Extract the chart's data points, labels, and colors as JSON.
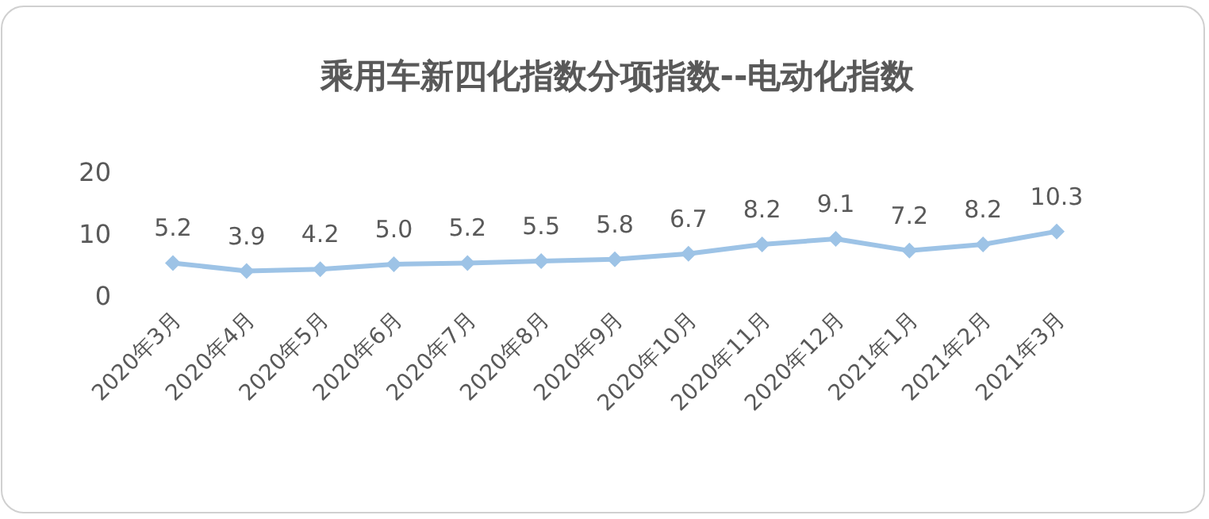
{
  "chart_data": {
    "type": "line",
    "title": "乘用车新四化指数分项指数--电动化指数",
    "categories": [
      "2020年3月",
      "2020年4月",
      "2020年5月",
      "2020年6月",
      "2020年7月",
      "2020年8月",
      "2020年9月",
      "2020年10月",
      "2020年11月",
      "2020年12月",
      "2021年1月",
      "2021年2月",
      "2021年3月"
    ],
    "series": [
      {
        "color": "#9dc3e6",
        "values": [
          5.2,
          3.9,
          4.2,
          5.0,
          5.2,
          5.5,
          5.8,
          6.7,
          8.2,
          9.1,
          7.2,
          8.2,
          10.3
        ],
        "value_labels": [
          "5.2",
          "3.9",
          "4.2",
          "5.0",
          "5.2",
          "5.5",
          "5.8",
          "6.7",
          "8.2",
          "9.1",
          "7.2",
          "8.2",
          "10.3"
        ]
      }
    ],
    "ylim": [
      0,
      20
    ],
    "yticks": [
      0,
      10,
      20
    ],
    "marker": "diamond",
    "line_style": "solid"
  }
}
